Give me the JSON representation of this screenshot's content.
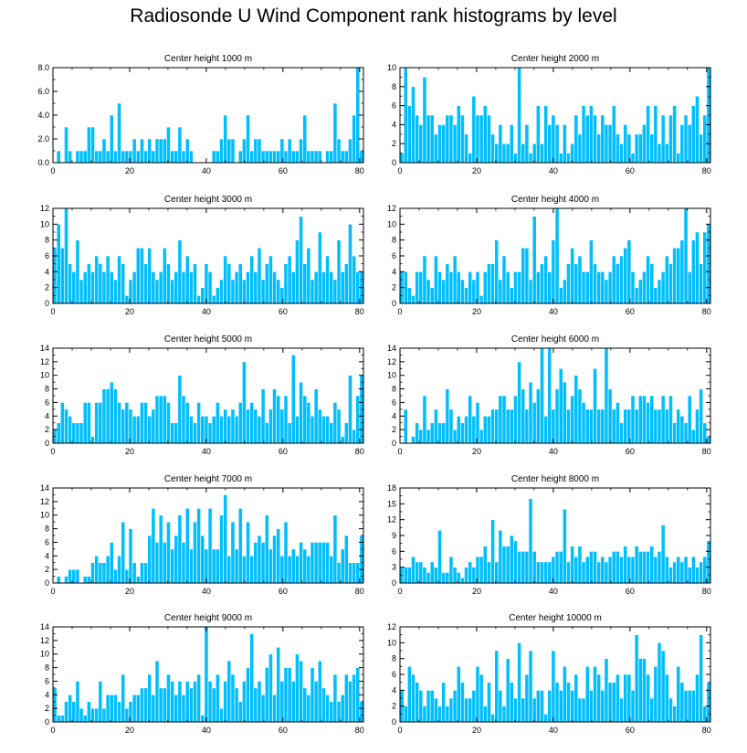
{
  "title": "Radiosonde U Wind Component rank histograms by level",
  "colors": {
    "bar": "#00bfff",
    "bar_edge": "#ffffff",
    "axis": "#000000"
  },
  "chart_data": [
    {
      "type": "bar",
      "title": "Center height 1000 m",
      "xlim": [
        0,
        81
      ],
      "ylim": [
        0,
        8
      ],
      "xticks": [
        0,
        20,
        40,
        60,
        80
      ],
      "yticks": [
        "0.0",
        "2.0",
        "4.0",
        "6.0",
        "8.0"
      ],
      "values": [
        0,
        1,
        0,
        3,
        1,
        0,
        1,
        1,
        1,
        3,
        3,
        1,
        1,
        2,
        1,
        4,
        1,
        5,
        1,
        1,
        1,
        2,
        1,
        2,
        1,
        2,
        1,
        2,
        2,
        2,
        3,
        1,
        1,
        3,
        1,
        2,
        1,
        0,
        0,
        0,
        0,
        0,
        1,
        1,
        2,
        4,
        2,
        2,
        0,
        1,
        2,
        4,
        1,
        2,
        2,
        1,
        1,
        1,
        1,
        1,
        2,
        1,
        2,
        1,
        1,
        2,
        4,
        1,
        1,
        1,
        1,
        0,
        1,
        1,
        5,
        2,
        1,
        1,
        2,
        4,
        8,
        1
      ]
    },
    {
      "type": "bar",
      "title": "Center height 2000 m",
      "xlim": [
        0,
        81
      ],
      "ylim": [
        0,
        10
      ],
      "xticks": [
        0,
        20,
        40,
        60,
        80
      ],
      "yticks": [
        "0",
        "2",
        "4",
        "6",
        "8",
        "10"
      ],
      "values": [
        1,
        10,
        6,
        8,
        5,
        4,
        9,
        5,
        5,
        3,
        4,
        4,
        5,
        5,
        4,
        6,
        5,
        3,
        1,
        7,
        5,
        5,
        6,
        5,
        3,
        2,
        4,
        2,
        2,
        4,
        1,
        10,
        2,
        4,
        1,
        2,
        6,
        2,
        6,
        4,
        5,
        4,
        1,
        4,
        1,
        2,
        5,
        3,
        6,
        5,
        6,
        5,
        3,
        5,
        4,
        4,
        6,
        3,
        2,
        4,
        3,
        1,
        3,
        3,
        4,
        6,
        3,
        6,
        2,
        5,
        2,
        5,
        6,
        1,
        4,
        5,
        4,
        6,
        7,
        3,
        5,
        10
      ]
    },
    {
      "type": "bar",
      "title": "Center height 3000 m",
      "xlim": [
        0,
        81
      ],
      "ylim": [
        0,
        12
      ],
      "xticks": [
        0,
        20,
        40,
        60,
        80
      ],
      "yticks": [
        "0",
        "2",
        "4",
        "6",
        "8",
        "10",
        "12"
      ],
      "values": [
        7,
        10,
        7,
        12,
        5,
        4,
        8,
        3,
        4,
        5,
        4,
        6,
        5,
        4,
        6,
        4,
        3,
        6,
        5,
        1,
        3,
        4,
        7,
        7,
        5,
        7,
        4,
        3,
        4,
        7,
        5,
        3,
        4,
        8,
        4,
        6,
        4,
        5,
        1,
        2,
        5,
        4,
        1,
        2,
        3,
        6,
        5,
        3,
        4,
        5,
        3,
        4,
        6,
        4,
        7,
        3,
        5,
        6,
        4,
        3,
        2,
        5,
        6,
        4,
        8,
        11,
        5,
        7,
        3,
        4,
        9,
        4,
        6,
        4,
        3,
        8,
        4,
        5,
        10,
        6,
        4,
        4
      ]
    },
    {
      "type": "bar",
      "title": "Center height 4000 m",
      "xlim": [
        0,
        81
      ],
      "ylim": [
        0,
        12
      ],
      "xticks": [
        0,
        20,
        40,
        60,
        80
      ],
      "yticks": [
        "0",
        "2",
        "4",
        "6",
        "8",
        "10",
        "12"
      ],
      "values": [
        4,
        4,
        2,
        1,
        4,
        4,
        6,
        3,
        2,
        6,
        4,
        3,
        5,
        4,
        6,
        4,
        3,
        2,
        4,
        3,
        4,
        1,
        4,
        5,
        5,
        8,
        3,
        6,
        4,
        2,
        4,
        4,
        7,
        7,
        3,
        11,
        4,
        5,
        6,
        4,
        8,
        12,
        2,
        3,
        5,
        7,
        5,
        6,
        4,
        4,
        8,
        5,
        4,
        4,
        3,
        4,
        6,
        5,
        6,
        7,
        8,
        4,
        2,
        3,
        4,
        6,
        5,
        2,
        3,
        4,
        6,
        5,
        7,
        7,
        8,
        12,
        4,
        8,
        9,
        5,
        9,
        10
      ]
    },
    {
      "type": "bar",
      "title": "Center height 5000 m",
      "xlim": [
        0,
        81
      ],
      "ylim": [
        0,
        14
      ],
      "xticks": [
        0,
        20,
        40,
        60,
        80
      ],
      "yticks": [
        "0",
        "2",
        "4",
        "6",
        "8",
        "10",
        "12",
        "14"
      ],
      "values": [
        2,
        3,
        6,
        5,
        4,
        3,
        3,
        3,
        6,
        6,
        1,
        6,
        6,
        8,
        8,
        9,
        8,
        6,
        5,
        6,
        5,
        4,
        4,
        6,
        6,
        4,
        5,
        7,
        7,
        7,
        6,
        3,
        3,
        10,
        7,
        6,
        4,
        3,
        6,
        4,
        4,
        3,
        4,
        6,
        4,
        5,
        4,
        5,
        4,
        6,
        12,
        5,
        6,
        5,
        4,
        8,
        3,
        5,
        8,
        7,
        5,
        7,
        3,
        13,
        4,
        9,
        7,
        6,
        4,
        8,
        5,
        4,
        4,
        3,
        6,
        5,
        1,
        3,
        10,
        2,
        7,
        10
      ]
    },
    {
      "type": "bar",
      "title": "Center height 6000 m",
      "xlim": [
        0,
        81
      ],
      "ylim": [
        0,
        14
      ],
      "xticks": [
        0,
        20,
        40,
        60,
        80
      ],
      "yticks": [
        "0",
        "2",
        "4",
        "6",
        "8",
        "10",
        "12",
        "14"
      ],
      "values": [
        0,
        5,
        0,
        1,
        3,
        2,
        7,
        2,
        3,
        5,
        3,
        3,
        8,
        5,
        2,
        4,
        3,
        4,
        7,
        4,
        6,
        2,
        4,
        4,
        5,
        5,
        7,
        7,
        5,
        5,
        7,
        12,
        8,
        5,
        9,
        6,
        8,
        14,
        4,
        14,
        5,
        8,
        11,
        9,
        5,
        7,
        10,
        8,
        6,
        5,
        5,
        11,
        5,
        5,
        14,
        8,
        5,
        6,
        3,
        5,
        5,
        7,
        5,
        7,
        7,
        6,
        7,
        5,
        5,
        7,
        5,
        7,
        3,
        5,
        4,
        3,
        7,
        2,
        5,
        8,
        3,
        1
      ]
    },
    {
      "type": "bar",
      "title": "Center height 7000 m",
      "xlim": [
        0,
        81
      ],
      "ylim": [
        0,
        14
      ],
      "xticks": [
        0,
        20,
        40,
        60,
        80
      ],
      "yticks": [
        "0",
        "2",
        "4",
        "6",
        "8",
        "10",
        "12",
        "14"
      ],
      "values": [
        0,
        1,
        0,
        1,
        2,
        2,
        2,
        0,
        1,
        1,
        3,
        4,
        3,
        3,
        4,
        6,
        2,
        4,
        9,
        2,
        8,
        3,
        1,
        3,
        3,
        7,
        11,
        6,
        10,
        6,
        9,
        5,
        7,
        10,
        6,
        11,
        5,
        9,
        11,
        7,
        5,
        11,
        5,
        5,
        10,
        13,
        4,
        9,
        5,
        11,
        4,
        9,
        4,
        6,
        7,
        6,
        10,
        5,
        7,
        8,
        4,
        9,
        4,
        5,
        4,
        6,
        5,
        4,
        6,
        6,
        6,
        6,
        6,
        4,
        10,
        3,
        5,
        7,
        3,
        3,
        3,
        7
      ]
    },
    {
      "type": "bar",
      "title": "Center height 8000 m",
      "xlim": [
        0,
        81
      ],
      "ylim": [
        0,
        18
      ],
      "xticks": [
        0,
        20,
        40,
        60,
        80
      ],
      "yticks": [
        "0",
        "3",
        "6",
        "9",
        "12",
        "15",
        "18"
      ],
      "values": [
        3,
        3,
        3,
        5,
        4,
        4,
        3,
        2,
        4,
        3,
        10,
        2,
        2,
        5,
        3,
        2,
        1,
        3,
        4,
        3,
        5,
        5,
        7,
        4,
        12,
        4,
        10,
        7,
        7,
        9,
        8,
        6,
        6,
        6,
        16,
        6,
        4,
        4,
        4,
        4,
        5,
        6,
        6,
        14,
        4,
        7,
        5,
        7,
        4,
        5,
        6,
        6,
        4,
        5,
        4,
        5,
        6,
        6,
        5,
        7,
        5,
        5,
        7,
        6,
        6,
        6,
        7,
        5,
        6,
        11,
        5,
        3,
        4,
        5,
        4,
        5,
        3,
        5,
        3,
        4,
        5,
        8
      ]
    },
    {
      "type": "bar",
      "title": "Center height 9000 m",
      "xlim": [
        0,
        81
      ],
      "ylim": [
        0,
        14
      ],
      "xticks": [
        0,
        20,
        40,
        60,
        80
      ],
      "yticks": [
        "0",
        "2",
        "4",
        "6",
        "8",
        "10",
        "12",
        "14"
      ],
      "values": [
        5,
        1,
        1,
        3,
        4,
        3,
        6,
        2,
        1,
        3,
        2,
        2,
        6,
        2,
        4,
        4,
        4,
        3,
        7,
        2,
        3,
        4,
        4,
        5,
        5,
        7,
        4,
        9,
        5,
        5,
        7,
        6,
        4,
        6,
        4,
        6,
        5,
        6,
        7,
        1,
        14,
        6,
        5,
        7,
        2,
        6,
        9,
        7,
        5,
        3,
        6,
        8,
        13,
        5,
        6,
        4,
        8,
        10,
        4,
        11,
        6,
        8,
        8,
        6,
        10,
        9,
        5,
        4,
        8,
        6,
        9,
        5,
        4,
        3,
        7,
        3,
        4,
        7,
        6,
        7,
        8,
        3
      ]
    },
    {
      "type": "bar",
      "title": "Center height 10000 m",
      "xlim": [
        0,
        81
      ],
      "ylim": [
        0,
        12
      ],
      "xticks": [
        0,
        20,
        40,
        60,
        80
      ],
      "yticks": [
        "0",
        "2",
        "4",
        "6",
        "8",
        "10",
        "12"
      ],
      "values": [
        4,
        2,
        7,
        6,
        5,
        4,
        2,
        4,
        4,
        3,
        2,
        5,
        2,
        3,
        4,
        7,
        5,
        3,
        3,
        4,
        7,
        6,
        2,
        5,
        1,
        9,
        4,
        2,
        8,
        5,
        3,
        10,
        3,
        6,
        9,
        3,
        4,
        4,
        1,
        4,
        9,
        5,
        4,
        7,
        5,
        4,
        6,
        3,
        3,
        7,
        4,
        7,
        6,
        4,
        8,
        5,
        5,
        6,
        3,
        6,
        6,
        4,
        11,
        8,
        8,
        6,
        3,
        7,
        10,
        9,
        6,
        3,
        2,
        7,
        5,
        4,
        4,
        4,
        6,
        11,
        2,
        5
      ]
    }
  ]
}
